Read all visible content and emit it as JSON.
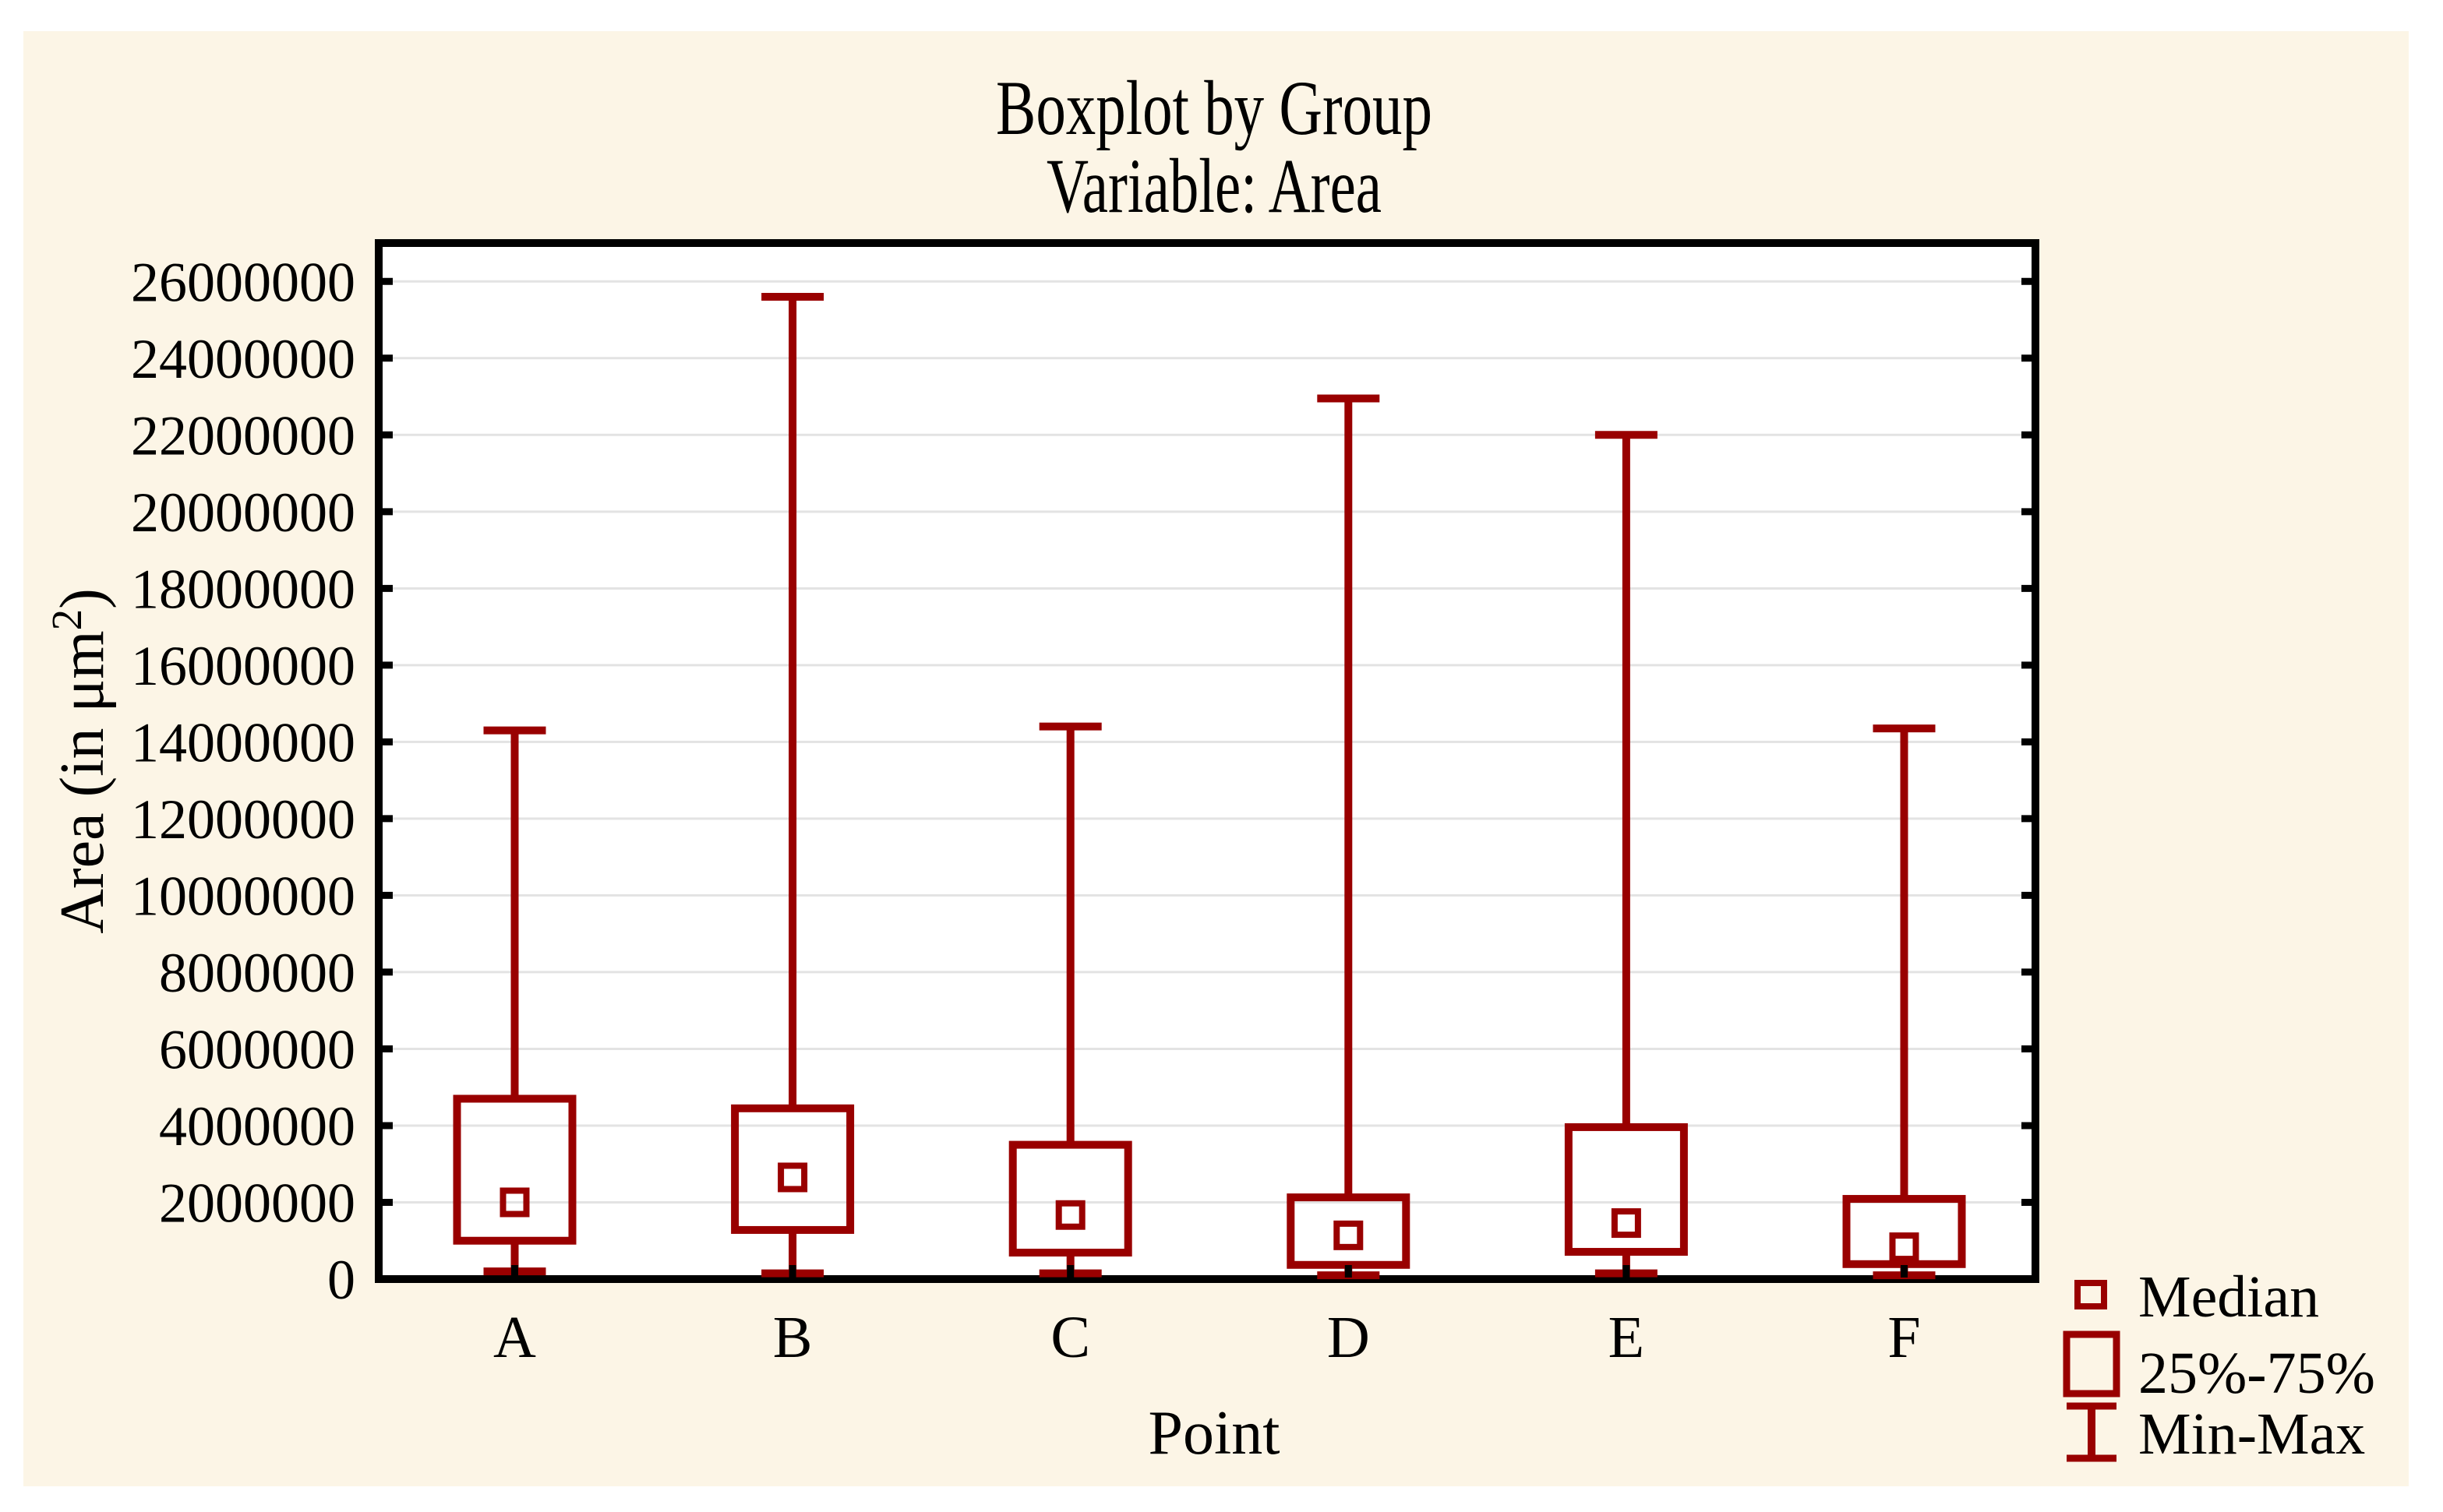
{
  "title": {
    "line1": "Boxplot by Group",
    "line2": "Variable: Area"
  },
  "y_axis": {
    "title_prefix": "Area (in μm",
    "title_sup": "2",
    "title_suffix": ")"
  },
  "x_axis": {
    "title": "Point"
  },
  "legend": {
    "items": [
      {
        "symbol": "median-square",
        "label": "Median"
      },
      {
        "symbol": "quartile-box",
        "label": "25%-75%"
      },
      {
        "symbol": "min-max-whisker",
        "label": "Min-Max"
      }
    ]
  },
  "colors": {
    "series": "#990000",
    "frame": "#000000",
    "grid": "#e3e3e3",
    "panel": "#fcf5e6",
    "plot_background": "#ffffff",
    "text": "#000000"
  },
  "chart_data": {
    "type": "boxplot",
    "title": "Boxplot by Group",
    "subtitle": "Variable: Area",
    "xlabel": "Point",
    "ylabel": "Area (in μm²)",
    "ylim": [
      0,
      27000000
    ],
    "ytick_step": 2000000,
    "yticks": [
      0,
      2000000,
      4000000,
      6000000,
      8000000,
      10000000,
      12000000,
      14000000,
      16000000,
      18000000,
      20000000,
      22000000,
      24000000,
      26000000
    ],
    "grid": "horizontal-major",
    "legend_position": "bottom-right",
    "categories": [
      "A",
      "B",
      "C",
      "D",
      "E",
      "F"
    ],
    "series": [
      {
        "name": "A",
        "min": 200000,
        "q1": 1000000,
        "median": 2000000,
        "q3": 4700000,
        "max": 14300000
      },
      {
        "name": "B",
        "min": 150000,
        "q1": 1280000,
        "median": 2650000,
        "q3": 4450000,
        "max": 25600000
      },
      {
        "name": "C",
        "min": 150000,
        "q1": 690000,
        "median": 1670000,
        "q3": 3500000,
        "max": 14400000
      },
      {
        "name": "D",
        "min": 100000,
        "q1": 370000,
        "median": 1140000,
        "q3": 2130000,
        "max": 22950000
      },
      {
        "name": "E",
        "min": 150000,
        "q1": 710000,
        "median": 1460000,
        "q3": 3960000,
        "max": 22000000
      },
      {
        "name": "F",
        "min": 100000,
        "q1": 390000,
        "median": 830000,
        "q3": 2090000,
        "max": 14350000
      }
    ]
  }
}
